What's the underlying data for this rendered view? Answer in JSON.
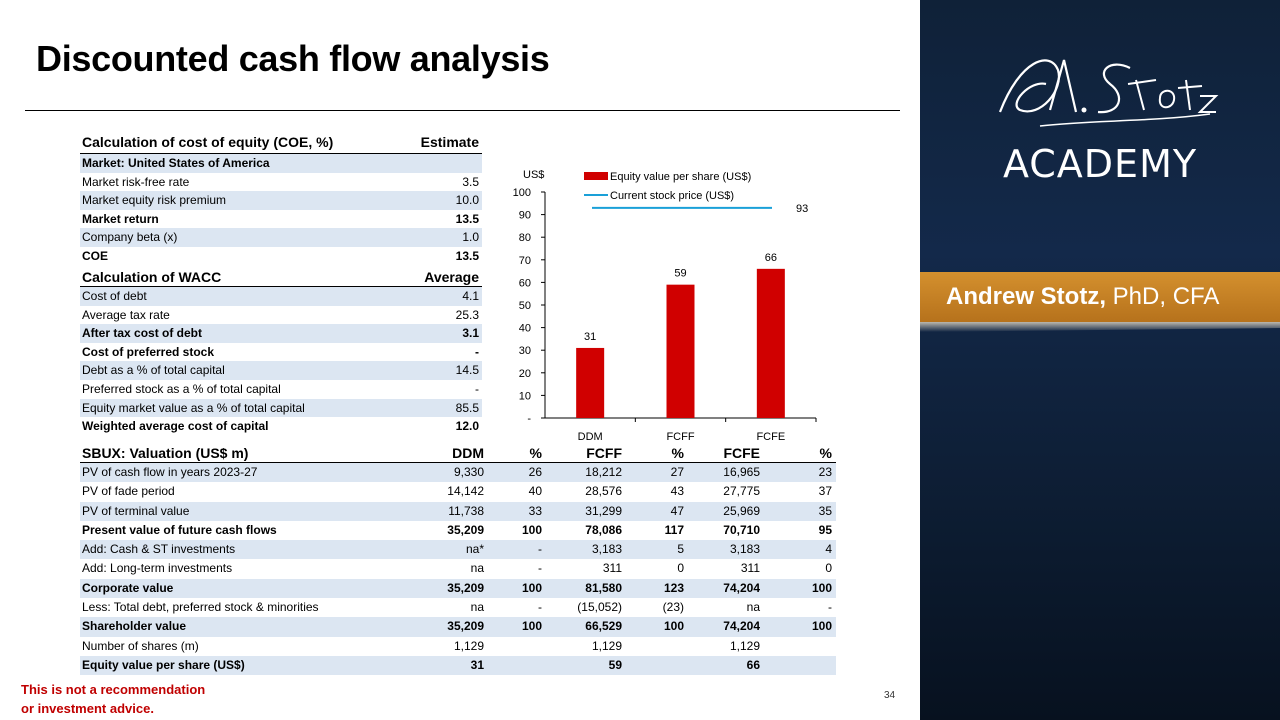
{
  "title": "Discounted cash flow analysis",
  "coe_table": {
    "header": {
      "label": "Calculation of cost of equity (COE, %)",
      "value": "Estimate"
    },
    "rows": [
      {
        "label": "Market: United States of America",
        "value": "",
        "bold": true,
        "shade": true
      },
      {
        "label": "Market risk-free rate",
        "value": "3.5",
        "bold": false,
        "shade": false
      },
      {
        "label": "Market equity risk premium",
        "value": "10.0",
        "bold": false,
        "shade": true
      },
      {
        "label": "Market return",
        "value": "13.5",
        "bold": true,
        "shade": false
      },
      {
        "label": "Company beta (x)",
        "value": "1.0",
        "bold": false,
        "shade": true
      },
      {
        "label": "COE",
        "value": "13.5",
        "bold": true,
        "shade": false
      }
    ]
  },
  "wacc_table": {
    "header": {
      "label": "Calculation of WACC",
      "value": "Average"
    },
    "rows": [
      {
        "label": "Cost of debt",
        "value": "4.1",
        "bold": false,
        "shade": true
      },
      {
        "label": "Average tax rate",
        "value": "25.3",
        "bold": false,
        "shade": false
      },
      {
        "label": "After tax cost of debt",
        "value": "3.1",
        "bold": true,
        "shade": true
      },
      {
        "label": "Cost of preferred stock",
        "value": "-",
        "bold": true,
        "shade": false
      },
      {
        "label": "Debt as a % of total capital",
        "value": "14.5",
        "bold": false,
        "shade": true
      },
      {
        "label": "Preferred stock as a % of total capital",
        "value": "-",
        "bold": false,
        "shade": false
      },
      {
        "label": "Equity market value as a % of total capital",
        "value": "85.5",
        "bold": false,
        "shade": true
      },
      {
        "label": "Weighted average cost of capital",
        "value": "12.0",
        "bold": true,
        "shade": false
      }
    ]
  },
  "valuation_table": {
    "header": [
      "SBUX: Valuation (US$ m)",
      "DDM",
      "%",
      "FCFF",
      "%",
      "FCFE",
      "%"
    ],
    "rows": [
      {
        "cells": [
          "PV of cash flow in years 2023-27",
          "9,330",
          "26",
          "18,212",
          "27",
          "16,965",
          "23"
        ],
        "bold": false,
        "shade": true
      },
      {
        "cells": [
          "PV of fade period",
          "14,142",
          "40",
          "28,576",
          "43",
          "27,775",
          "37"
        ],
        "bold": false,
        "shade": false
      },
      {
        "cells": [
          "PV of terminal value",
          "11,738",
          "33",
          "31,299",
          "47",
          "25,969",
          "35"
        ],
        "bold": false,
        "shade": true
      },
      {
        "cells": [
          "Present value of future cash flows",
          "35,209",
          "100",
          "78,086",
          "117",
          "70,710",
          "95"
        ],
        "bold": true,
        "shade": false
      },
      {
        "cells": [
          "Add: Cash & ST investments",
          "na*",
          "-",
          "3,183",
          "5",
          "3,183",
          "4"
        ],
        "bold": false,
        "shade": true
      },
      {
        "cells": [
          "Add: Long-term investments",
          "na",
          "-",
          "311",
          "0",
          "311",
          "0"
        ],
        "bold": false,
        "shade": false
      },
      {
        "cells": [
          "Corporate value",
          "35,209",
          "100",
          "81,580",
          "123",
          "74,204",
          "100"
        ],
        "bold": true,
        "shade": true
      },
      {
        "cells": [
          "Less: Total debt, preferred stock & minorities",
          "na",
          "-",
          "(15,052)",
          "(23)",
          "na",
          "-"
        ],
        "bold": false,
        "shade": false
      },
      {
        "cells": [
          "Shareholder value",
          "35,209",
          "100",
          "66,529",
          "100",
          "74,204",
          "100"
        ],
        "bold": true,
        "shade": true
      },
      {
        "cells": [
          "Number of shares (m)",
          "1,129",
          "",
          "1,129",
          "",
          "1,129",
          ""
        ],
        "bold": false,
        "shade": false
      },
      {
        "cells": [
          "Equity value per share (US$)",
          "31",
          "",
          "59",
          "",
          "66",
          ""
        ],
        "bold": true,
        "shade": true
      }
    ]
  },
  "chart_data": {
    "type": "bar",
    "ylabel": "US$",
    "categories": [
      "DDM",
      "FCFF",
      "FCFE"
    ],
    "series": [
      {
        "name": "Equity value per share (US$)",
        "values": [
          31,
          59,
          66
        ],
        "color": "#d00000"
      }
    ],
    "reference_line": {
      "name": "Current stock price (US$)",
      "value": 93,
      "label": "93",
      "color": "#1aa0d8"
    },
    "ylim": [
      0,
      100
    ],
    "yticks": [
      "-",
      "10",
      "20",
      "30",
      "40",
      "50",
      "60",
      "70",
      "80",
      "90",
      "100"
    ],
    "legend_position": "top"
  },
  "brand": {
    "script": "A. Stotz",
    "academy": "ACADEMY"
  },
  "author": {
    "name": "Andrew Stotz,",
    "credentials": " PhD, CFA"
  },
  "disclaimer": [
    "This is not a recommendation",
    "or investment advice."
  ],
  "page_number": "34",
  "colors": {
    "panel": "#13294a",
    "accent": "#c8862a",
    "bar": "#d00000",
    "line": "#1aa0d8",
    "shade": "#dce6f2",
    "warning": "#c00000"
  }
}
